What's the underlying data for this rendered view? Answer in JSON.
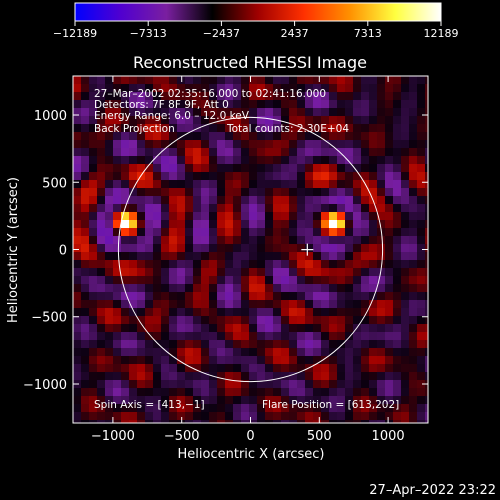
{
  "chart_data": {
    "type": "heatmap",
    "title": "Reconstructed RHESSI Image",
    "xlabel": "Heliocentric X (arcsec)",
    "ylabel": "Heliocentric Y (arcsec)",
    "xlim": [
      -1290,
      1290
    ],
    "ylim": [
      -1290,
      1290
    ],
    "xticks": [
      -1000,
      -500,
      0,
      500,
      1000
    ],
    "yticks": [
      -1000,
      -500,
      0,
      500,
      1000
    ],
    "colorbar": {
      "min": -12189,
      "max": 12189,
      "tick_values": [
        -12189,
        -7313,
        -2437,
        2437,
        7313,
        12189
      ],
      "tick_labels": [
        "−12189",
        "−7313",
        "−2437",
        "2437",
        "7313",
        "12189"
      ],
      "colors": [
        "#0000ff",
        "#5000d0",
        "#7a1fa0",
        "#000000",
        "#a00000",
        "#ff3000",
        "#ff9000",
        "#ffff40",
        "#ffffff"
      ]
    },
    "annotations": {
      "time_range": "27–Mar–2002 02:35:16.000 to 02:41:16.000",
      "detectors": "Detectors: 7F 8F 9F, Att 0",
      "energy_range": "Energy Range: 6.0 – 12.0 keV",
      "method": "Back Projection",
      "total_counts": "Total counts: 2.30E+04",
      "spin_axis": "Spin Axis = [413,−1]",
      "flare_position": "Flare Position = [613,202]"
    },
    "solar_limb": {
      "center": [
        0,
        0
      ],
      "radius_arcsec": 960
    },
    "spin_axis_marker": [
      413,
      -1
    ],
    "sources": [
      {
        "x": 613,
        "y": 202,
        "peak": 12189,
        "width_arcsec": 55
      },
      {
        "x": -910,
        "y": 200,
        "peak": 10500,
        "width_arcsec": 50
      }
    ]
  },
  "footer": {
    "timestamp": "27–Apr–2022 23:22"
  }
}
